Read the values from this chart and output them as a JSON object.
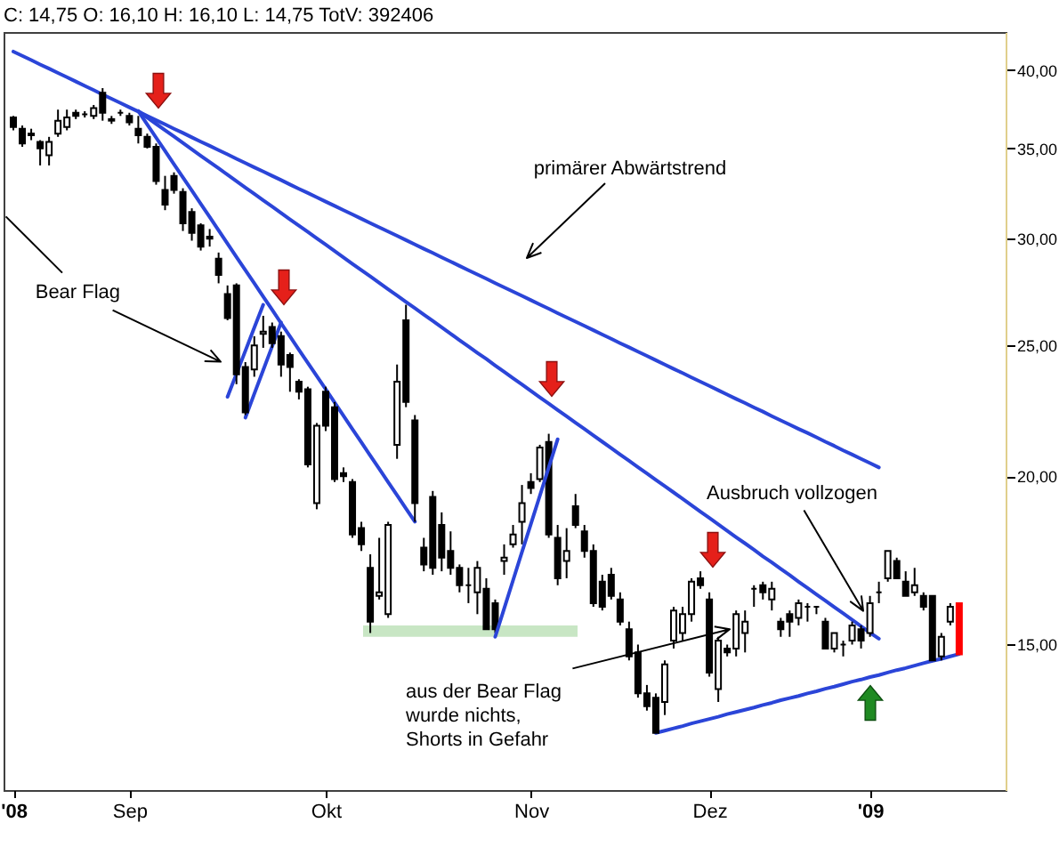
{
  "chart_data": {
    "type": "candlestick",
    "title": "C: 14,75 O: 16,10 H: 16,10 L: 14,75 TotV: 392406",
    "log": true,
    "categories": [
      "'08",
      null,
      null,
      null,
      null,
      null,
      null,
      null,
      null,
      null,
      null,
      null,
      null,
      "Sep",
      null,
      null,
      null,
      null,
      null,
      null,
      null,
      null,
      null,
      null,
      null,
      null,
      null,
      null,
      null,
      null,
      null,
      null,
      null,
      null,
      null,
      "Okt",
      null,
      null,
      null,
      null,
      null,
      null,
      null,
      null,
      null,
      null,
      null,
      null,
      null,
      null,
      null,
      null,
      null,
      null,
      null,
      null,
      null,
      null,
      "Nov",
      null,
      null,
      null,
      null,
      null,
      null,
      null,
      null,
      null,
      null,
      null,
      null,
      null,
      null,
      null,
      null,
      null,
      null,
      null,
      "Dez",
      null,
      null,
      null,
      null,
      null,
      null,
      null,
      null,
      null,
      null,
      null,
      null,
      null,
      null,
      null,
      null,
      null,
      "'09",
      null,
      null,
      null,
      null,
      null,
      null,
      null,
      null,
      null,
      null
    ],
    "ylim": [
      11.7,
      42.7
    ],
    "yticks": [
      {
        "value": 15,
        "label": "15,00"
      },
      {
        "value": 20,
        "label": "20,00"
      },
      {
        "value": 25,
        "label": "25,00"
      },
      {
        "value": 30,
        "label": "30,00"
      },
      {
        "value": 35,
        "label": "35,00"
      },
      {
        "value": 40,
        "label": "40,00"
      }
    ],
    "ohlc": [
      [
        36.9,
        37.0,
        36.1,
        36.3
      ],
      [
        36.2,
        36.4,
        35.1,
        35.3
      ],
      [
        35.9,
        36.2,
        35.5,
        35.8
      ],
      [
        35.4,
        35.5,
        34.0,
        35.0
      ],
      [
        34.6,
        35.7,
        34.0,
        35.4
      ],
      [
        35.9,
        37.4,
        35.7,
        36.7
      ],
      [
        36.3,
        37.4,
        36.1,
        36.9
      ],
      [
        37.2,
        37.4,
        36.8,
        37.0
      ],
      [
        37.1,
        37.3,
        36.9,
        37.1
      ],
      [
        37.0,
        37.7,
        36.8,
        37.5
      ],
      [
        38.5,
        38.8,
        36.7,
        37.2
      ],
      [
        36.8,
        37.0,
        36.5,
        36.7
      ],
      [
        37.2,
        37.4,
        37.0,
        37.2
      ],
      [
        37.0,
        37.2,
        36.4,
        36.6
      ],
      [
        36.2,
        37.0,
        35.3,
        35.8
      ],
      [
        35.7,
        35.9,
        35.0,
        35.1
      ],
      [
        35.1,
        35.3,
        32.9,
        33.1
      ],
      [
        32.6,
        33.4,
        31.5,
        31.8
      ],
      [
        33.4,
        33.6,
        32.4,
        32.6
      ],
      [
        32.5,
        32.7,
        30.4,
        30.8
      ],
      [
        31.4,
        31.6,
        29.9,
        30.3
      ],
      [
        30.7,
        30.8,
        29.4,
        29.6
      ],
      [
        30.1,
        30.5,
        29.6,
        30.0
      ],
      [
        29.0,
        29.3,
        27.8,
        28.2
      ],
      [
        27.3,
        27.7,
        26.1,
        26.2
      ],
      [
        27.7,
        27.8,
        23.4,
        23.8
      ],
      [
        24.1,
        24.3,
        22.2,
        22.3
      ],
      [
        24.0,
        25.4,
        23.7,
        25.0
      ],
      [
        25.5,
        26.3,
        24.9,
        25.6
      ],
      [
        25.8,
        26.0,
        24.9,
        25.1
      ],
      [
        25.4,
        25.6,
        23.7,
        24.2
      ],
      [
        24.6,
        24.7,
        23.1,
        24.1
      ],
      [
        23.5,
        23.6,
        22.8,
        23.1
      ],
      [
        23.2,
        23.3,
        20.3,
        20.4
      ],
      [
        19.1,
        21.9,
        18.9,
        21.8
      ],
      [
        23.1,
        23.3,
        21.6,
        21.8
      ],
      [
        22.5,
        22.7,
        19.8,
        19.9
      ],
      [
        20.1,
        20.3,
        19.8,
        20.0
      ],
      [
        19.8,
        19.9,
        18.0,
        18.1
      ],
      [
        18.3,
        18.5,
        17.6,
        17.8
      ],
      [
        17.1,
        17.5,
        15.3,
        15.6
      ],
      [
        16.3,
        18.0,
        16.2,
        16.4
      ],
      [
        15.8,
        18.5,
        15.7,
        18.4
      ],
      [
        21.1,
        24.2,
        20.6,
        23.5
      ],
      [
        26.1,
        26.8,
        22.5,
        22.7
      ],
      [
        22.0,
        22.2,
        18.5,
        19.1
      ],
      [
        17.7,
        18.0,
        17.0,
        17.2
      ],
      [
        19.3,
        19.5,
        16.9,
        17.1
      ],
      [
        18.4,
        18.8,
        17.0,
        17.4
      ],
      [
        17.6,
        18.2,
        16.9,
        17.1
      ],
      [
        17.1,
        17.2,
        16.4,
        16.6
      ],
      [
        16.6,
        17.1,
        16.1,
        16.6
      ],
      [
        16.4,
        17.3,
        15.8,
        17.1
      ],
      [
        16.5,
        16.8,
        15.4,
        15.4
      ],
      [
        16.1,
        16.2,
        15.3,
        15.4
      ],
      [
        17.3,
        17.8,
        16.9,
        17.4
      ],
      [
        17.8,
        18.4,
        17.7,
        18.1
      ],
      [
        18.5,
        19.7,
        17.8,
        19.1
      ],
      [
        19.8,
        20.1,
        19.4,
        19.6
      ],
      [
        19.9,
        21.1,
        19.8,
        21.0
      ],
      [
        21.2,
        21.5,
        18.0,
        18.1
      ],
      [
        18.0,
        18.4,
        16.6,
        16.8
      ],
      [
        17.3,
        18.3,
        16.8,
        17.6
      ],
      [
        19.0,
        19.4,
        18.3,
        18.4
      ],
      [
        18.2,
        18.4,
        17.4,
        17.6
      ],
      [
        17.6,
        17.8,
        16.0,
        16.1
      ],
      [
        16.7,
        16.9,
        15.9,
        16.0
      ],
      [
        16.9,
        17.1,
        16.2,
        16.3
      ],
      [
        16.2,
        16.4,
        15.5,
        15.6
      ],
      [
        15.4,
        15.6,
        14.6,
        14.7
      ],
      [
        14.8,
        15.0,
        13.7,
        13.8
      ],
      [
        13.8,
        14.0,
        13.4,
        13.5
      ],
      [
        13.7,
        13.8,
        12.9,
        12.9
      ],
      [
        13.6,
        14.6,
        13.3,
        14.5
      ],
      [
        15.1,
        16.0,
        14.9,
        15.9
      ],
      [
        15.3,
        16.0,
        15.1,
        15.8
      ],
      [
        15.8,
        16.8,
        15.6,
        16.7
      ],
      [
        16.8,
        17.0,
        16.5,
        16.6
      ],
      [
        16.2,
        16.4,
        14.2,
        14.3
      ],
      [
        13.9,
        15.2,
        13.6,
        15.1
      ],
      [
        14.9,
        15.0,
        14.7,
        14.8
      ],
      [
        14.9,
        15.9,
        14.7,
        15.8
      ],
      [
        15.3,
        15.9,
        14.8,
        15.6
      ],
      [
        16.5,
        16.6,
        16.0,
        16.5
      ],
      [
        16.6,
        16.7,
        16.2,
        16.4
      ],
      [
        16.2,
        16.7,
        15.9,
        16.5
      ],
      [
        15.6,
        15.7,
        15.2,
        15.4
      ],
      [
        15.8,
        15.9,
        15.2,
        15.6
      ],
      [
        15.7,
        16.2,
        15.5,
        16.1
      ],
      [
        16.0,
        16.1,
        15.6,
        16.0
      ],
      [
        16.0,
        16.0,
        15.8,
        16.0
      ],
      [
        15.6,
        15.7,
        14.9,
        14.9
      ],
      [
        14.9,
        15.3,
        14.8,
        15.3
      ],
      [
        15.0,
        15.1,
        14.7,
        15.0
      ],
      [
        15.1,
        15.6,
        15.0,
        15.5
      ],
      [
        15.4,
        15.5,
        14.9,
        15.1
      ],
      [
        15.3,
        16.3,
        15.2,
        16.1
      ],
      [
        16.4,
        16.7,
        16.1,
        16.4
      ],
      [
        16.8,
        17.6,
        16.7,
        17.6
      ],
      [
        17.3,
        17.4,
        16.8,
        16.8
      ],
      [
        16.7,
        17.0,
        16.3,
        16.3
      ],
      [
        16.4,
        17.1,
        16.3,
        16.6
      ],
      [
        16.3,
        16.4,
        15.9,
        16.0
      ],
      [
        16.3,
        16.3,
        14.6,
        14.6
      ],
      [
        14.7,
        15.3,
        14.6,
        15.2
      ],
      [
        15.6,
        16.1,
        15.5,
        16.0
      ],
      [
        16.1,
        16.1,
        14.75,
        14.75
      ]
    ],
    "colors": [
      "#000000",
      "#000000",
      "#000000",
      "#000000",
      "#ffffff",
      "#ffffff",
      "#ffffff",
      "#000000",
      "#000000",
      "#ffffff",
      "#000000",
      "#000000",
      "#000000",
      "#000000",
      "#000000",
      "#000000",
      "#000000",
      "#000000",
      "#000000",
      "#000000",
      "#000000",
      "#000000",
      "#000000",
      "#000000",
      "#000000",
      "#000000",
      "#000000",
      "#ffffff",
      "#ffffff",
      "#000000",
      "#000000",
      "#000000",
      "#000000",
      "#000000",
      "#ffffff",
      "#000000",
      "#000000",
      "#000000",
      "#000000",
      "#000000",
      "#000000",
      "#ffffff",
      "#ffffff",
      "#ffffff",
      "#000000",
      "#000000",
      "#000000",
      "#000000",
      "#000000",
      "#000000",
      "#000000",
      "#000000",
      "#ffffff",
      "#000000",
      "#000000",
      "#ffffff",
      "#ffffff",
      "#ffffff",
      "#000000",
      "#ffffff",
      "#000000",
      "#000000",
      "#ffffff",
      "#000000",
      "#000000",
      "#000000",
      "#000000",
      "#000000",
      "#000000",
      "#000000",
      "#000000",
      "#000000",
      "#000000",
      "#ffffff",
      "#ffffff",
      "#ffffff",
      "#ffffff",
      "#000000",
      "#000000",
      "#ffffff",
      "#000000",
      "#ffffff",
      "#ffffff",
      "#000000",
      "#000000",
      "#ffffff",
      "#000000",
      "#000000",
      "#ffffff",
      "#000000",
      "#000000",
      "#000000",
      "#ffffff",
      "#000000",
      "#ffffff",
      "#000000",
      "#ffffff",
      "#000000",
      "#ffffff",
      "#000000",
      "#000000",
      "#ffffff",
      "#000000",
      "#000000",
      "#ffffff",
      "#ffffff",
      "#ff0000"
    ],
    "bands": [
      {
        "axis": "y",
        "from": 15.2,
        "to": 15.5,
        "color": "#c8e6c4"
      }
    ],
    "series": [
      {
        "type": "line",
        "color": "#2b45d8",
        "values": [
          41.3,
          41.0,
          40.7,
          40.4,
          40.11,
          39.82,
          39.53,
          39.24,
          38.95,
          38.67,
          38.38,
          38.1,
          37.83,
          37.55,
          37.28,
          37.0,
          36.73,
          36.47,
          36.2,
          35.94,
          35.67,
          35.41,
          35.16,
          34.9,
          34.65,
          34.39,
          34.14,
          33.89,
          33.65,
          33.4,
          33.16,
          32.91,
          32.67,
          32.44,
          32.2,
          31.96,
          31.73,
          31.5,
          31.27,
          31.04,
          30.81,
          30.59,
          30.37,
          30.15,
          29.93,
          29.71,
          29.49,
          29.28,
          29.06,
          28.85,
          28.64,
          28.43,
          28.22,
          28.02,
          27.81,
          27.61,
          27.41,
          27.21,
          27.01,
          26.81,
          26.62,
          26.42,
          26.23,
          26.04,
          25.85,
          25.66,
          25.47,
          25.29,
          25.1,
          24.92,
          24.74,
          24.56,
          24.38,
          24.2,
          24.02,
          23.85,
          23.67,
          23.5,
          23.33,
          23.16,
          22.99,
          22.82,
          22.66,
          22.49,
          22.33,
          22.16,
          22.0,
          21.84,
          21.68,
          21.53,
          21.37,
          21.21,
          21.06,
          20.9,
          20.75,
          20.6,
          20.45,
          20.3,
          null,
          null,
          null,
          null,
          null,
          null,
          null,
          null,
          null
        ]
      },
      {
        "type": "line",
        "color": "#2b45d8",
        "values": [
          null,
          null,
          null,
          null,
          null,
          null,
          null,
          null,
          null,
          null,
          null,
          null,
          null,
          null,
          37.3,
          36.9,
          36.5,
          36.11,
          35.72,
          35.33,
          34.95,
          34.57,
          34.2,
          33.83,
          33.46,
          33.1,
          32.74,
          32.39,
          32.04,
          31.7,
          31.35,
          31.01,
          30.68,
          30.35,
          30.02,
          29.7,
          29.38,
          29.06,
          28.74,
          28.43,
          28.13,
          27.82,
          27.52,
          27.23,
          26.93,
          26.64,
          26.35,
          26.07,
          25.79,
          25.51,
          25.23,
          24.96,
          24.69,
          24.43,
          24.16,
          23.9,
          23.64,
          23.39,
          23.13,
          22.88,
          22.64,
          22.39,
          22.15,
          21.91,
          21.68,
          21.44,
          21.21,
          20.98,
          20.75,
          20.53,
          20.31,
          20.09,
          19.87,
          19.66,
          19.45,
          19.24,
          19.03,
          18.82,
          18.62,
          18.42,
          18.22,
          18.02,
          17.83,
          17.64,
          17.44,
          17.26,
          17.07,
          16.89,
          16.7,
          16.52,
          16.34,
          16.17,
          15.99,
          15.82,
          15.65,
          15.48,
          15.31,
          15.15,
          null,
          null,
          null,
          null,
          null,
          null,
          null,
          null,
          null
        ]
      },
      {
        "type": "line",
        "color": "#2b45d8",
        "values": [
          null,
          null,
          null,
          null,
          null,
          null,
          null,
          null,
          null,
          null,
          null,
          null,
          null,
          null,
          37.3,
          36.47,
          35.65,
          34.85,
          34.07,
          33.31,
          32.57,
          31.84,
          31.13,
          30.43,
          29.75,
          29.08,
          28.43,
          27.8,
          27.18,
          26.57,
          25.97,
          25.39,
          24.82,
          24.27,
          23.73,
          23.2,
          22.68,
          22.17,
          21.67,
          21.19,
          20.71,
          20.25,
          19.8,
          19.36,
          18.92,
          18.5,
          null,
          null,
          null,
          null,
          null,
          null,
          null,
          null,
          null,
          null,
          null,
          null,
          null,
          null,
          null,
          null,
          null,
          null,
          null,
          null,
          null,
          null,
          null,
          null,
          null,
          null,
          null,
          null,
          null,
          null,
          null,
          null,
          null,
          null,
          null,
          null,
          null,
          null,
          null,
          null,
          null,
          null,
          null,
          null,
          null,
          null,
          null,
          null,
          null,
          null,
          null,
          null,
          null,
          null,
          null,
          null,
          null,
          null,
          null,
          null,
          null
        ]
      },
      {
        "type": "line",
        "color": "#2b45d8",
        "values": [
          null,
          null,
          null,
          null,
          null,
          null,
          null,
          null,
          null,
          null,
          null,
          null,
          null,
          null,
          null,
          null,
          null,
          null,
          null,
          null,
          null,
          null,
          null,
          null,
          22.9,
          23.82,
          24.77,
          25.77,
          26.8,
          null,
          null,
          null,
          null,
          null,
          null,
          null,
          null,
          null,
          null,
          null,
          null,
          null,
          null,
          null,
          null,
          null,
          null,
          null,
          null,
          null,
          null,
          null,
          null,
          null,
          null,
          null,
          null,
          null,
          null,
          null,
          null,
          null,
          null,
          null,
          null,
          null,
          null,
          null,
          null,
          null,
          null,
          null,
          null,
          null,
          null,
          null,
          null,
          null,
          null,
          null,
          null,
          null,
          null,
          null,
          null,
          null,
          null,
          null,
          null,
          null,
          null,
          null,
          null,
          null,
          null,
          null,
          null,
          null,
          null,
          null,
          null,
          null,
          null,
          null,
          null,
          null,
          null
        ]
      },
      {
        "type": "line",
        "color": "#2b45d8",
        "values": [
          null,
          null,
          null,
          null,
          null,
          null,
          null,
          null,
          null,
          null,
          null,
          null,
          null,
          null,
          null,
          null,
          null,
          null,
          null,
          null,
          null,
          null,
          null,
          null,
          null,
          null,
          22.1,
          23.02,
          23.97,
          24.96,
          26.0,
          null,
          null,
          null,
          null,
          null,
          null,
          null,
          null,
          null,
          null,
          null,
          null,
          null,
          null,
          null,
          null,
          null,
          null,
          null,
          null,
          null,
          null,
          null,
          null,
          null,
          null,
          null,
          null,
          null,
          null,
          null,
          null,
          null,
          null,
          null,
          null,
          null,
          null,
          null,
          null,
          null,
          null,
          null,
          null,
          null,
          null,
          null,
          null,
          null,
          null,
          null,
          null,
          null,
          null,
          null,
          null,
          null,
          null,
          null,
          null,
          null,
          null,
          null,
          null,
          null,
          null,
          null,
          null,
          null,
          null,
          null,
          null,
          null,
          null,
          null,
          null
        ]
      },
      {
        "type": "line",
        "color": "#2b45d8",
        "values": [
          null,
          null,
          null,
          null,
          null,
          null,
          null,
          null,
          null,
          null,
          null,
          null,
          null,
          null,
          null,
          null,
          null,
          null,
          null,
          null,
          null,
          null,
          null,
          null,
          null,
          null,
          null,
          null,
          null,
          null,
          null,
          null,
          null,
          null,
          null,
          null,
          null,
          null,
          null,
          null,
          null,
          null,
          null,
          null,
          null,
          null,
          null,
          null,
          null,
          null,
          null,
          null,
          null,
          null,
          15.2,
          15.95,
          16.74,
          17.57,
          18.43,
          19.34,
          20.3,
          21.3,
          null,
          null,
          null,
          null,
          null,
          null,
          null,
          null,
          null,
          null,
          null,
          null,
          null,
          null,
          null,
          null,
          null,
          null,
          null,
          null,
          null,
          null,
          null,
          null,
          null,
          null,
          null,
          null,
          null,
          null,
          null,
          null,
          null,
          null,
          null,
          null,
          null,
          null,
          null,
          null,
          null,
          null,
          null,
          null,
          null
        ]
      },
      {
        "type": "line",
        "color": "#2b45d8",
        "values": [
          null,
          null,
          null,
          null,
          null,
          null,
          null,
          null,
          null,
          null,
          null,
          null,
          null,
          null,
          null,
          null,
          null,
          null,
          null,
          null,
          null,
          null,
          null,
          null,
          null,
          null,
          null,
          null,
          null,
          null,
          null,
          null,
          null,
          null,
          null,
          null,
          null,
          null,
          null,
          null,
          null,
          null,
          null,
          null,
          null,
          null,
          null,
          null,
          null,
          null,
          null,
          null,
          null,
          null,
          null,
          null,
          null,
          null,
          null,
          null,
          null,
          null,
          null,
          null,
          null,
          null,
          null,
          null,
          null,
          null,
          null,
          null,
          12.9,
          12.95,
          13.0,
          13.05,
          13.11,
          13.16,
          13.21,
          13.26,
          13.32,
          13.37,
          13.42,
          13.47,
          13.53,
          13.58,
          13.64,
          13.69,
          13.74,
          13.8,
          13.85,
          13.91,
          13.96,
          14.02,
          14.08,
          14.13,
          14.19,
          14.24,
          14.3,
          14.36,
          14.41,
          14.47,
          14.53,
          14.59,
          14.64,
          14.7,
          14.76
        ]
      }
    ],
    "annotations": [
      "primärer Abwärtstrend",
      "Bear Flag",
      "Ausbruch vollzogen",
      {
        "text": "aus der Bear Flag\nwurde nichts,\nShorts in Gefahr",
        "y": 15.4
      }
    ]
  }
}
